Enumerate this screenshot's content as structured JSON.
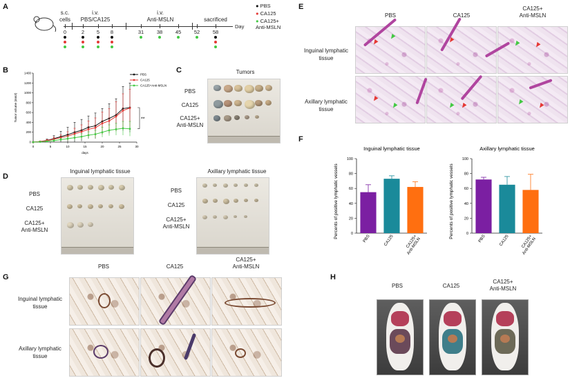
{
  "letters": {
    "A": "A",
    "B": "B",
    "C": "C",
    "D": "D",
    "E": "E",
    "F": "F",
    "G": "G",
    "H": "H"
  },
  "timeline": {
    "stages": [
      {
        "route": "s.c.",
        "label": "cells"
      },
      {
        "route": "i.v.",
        "label": "PBS/CA125"
      },
      {
        "route": "i.v.",
        "label": "Anti-MSLN"
      },
      {
        "route": "",
        "label": "sacrificed"
      }
    ],
    "days": [
      "0",
      "2",
      "5",
      "8",
      "31",
      "38",
      "45",
      "52",
      "58"
    ],
    "axis_label": "Day",
    "legend": [
      {
        "label": "PBS",
        "color": "#111111"
      },
      {
        "label": "CA125",
        "color": "#e53935"
      },
      {
        "label": "CA125+\nAnti-MSLN",
        "color": "#43c943"
      }
    ]
  },
  "panel_c": {
    "title": "Tumors",
    "rows": [
      "PBS",
      "CA125",
      "CA125+\nAnti-MSLN"
    ]
  },
  "panel_d": {
    "titles": [
      "Inguinal lymphatic tissue",
      "Axillary lymphatic tissue"
    ],
    "rows": [
      "PBS",
      "CA125",
      "CA125+\nAnti-MSLN"
    ]
  },
  "panel_e": {
    "cols": [
      "PBS",
      "CA125",
      "CA125+\nAnti-MSLN"
    ],
    "rows": [
      "Inguinal lymphatic\ntissue",
      "Axillary lymphatic\ntissue"
    ]
  },
  "panel_g": {
    "cols": [
      "PBS",
      "CA125",
      "CA125+\nAnti-MSLN"
    ],
    "rows": [
      "Inguinal lymphatic\ntissue",
      "Axillary lymphatic\ntissue"
    ]
  },
  "panel_h": {
    "cols": [
      "PBS",
      "CA125",
      "CA125+\nAnti-MSLN"
    ]
  },
  "chart_data": [
    {
      "id": "B",
      "type": "line",
      "xlabel": "days",
      "ylabel": "Tumor volume (mm3)",
      "xlim": [
        0,
        30
      ],
      "ylim": [
        0,
        1400
      ],
      "xticks": [
        0,
        5,
        10,
        15,
        20,
        25,
        30
      ],
      "yticks": [
        0,
        200,
        400,
        600,
        800,
        1000,
        1200,
        1400
      ],
      "x": [
        0,
        2,
        4,
        6,
        8,
        10,
        12,
        14,
        16,
        18,
        20,
        22,
        24,
        26,
        28
      ],
      "series": [
        {
          "name": "PBS",
          "color": "#111111",
          "values": [
            0,
            10,
            35,
            70,
            110,
            150,
            200,
            240,
            300,
            330,
            420,
            480,
            550,
            680,
            700
          ],
          "errors": [
            0,
            10,
            25,
            60,
            110,
            150,
            200,
            220,
            230,
            260,
            260,
            300,
            330,
            450,
            500
          ]
        },
        {
          "name": "CA125",
          "color": "#e53935",
          "values": [
            0,
            10,
            30,
            60,
            90,
            120,
            170,
            210,
            260,
            290,
            380,
            430,
            520,
            640,
            690
          ],
          "errors": [
            0,
            8,
            20,
            40,
            60,
            90,
            110,
            140,
            170,
            200,
            230,
            250,
            300,
            340,
            380
          ]
        },
        {
          "name": "CA125+Anti-MSLN",
          "color": "#43c943",
          "values": [
            0,
            5,
            15,
            30,
            50,
            70,
            90,
            110,
            140,
            160,
            200,
            240,
            260,
            280,
            270
          ],
          "errors": [
            0,
            5,
            10,
            20,
            30,
            40,
            50,
            60,
            70,
            80,
            100,
            110,
            120,
            140,
            150
          ]
        }
      ],
      "annotation": "**"
    },
    {
      "id": "F-inguinal",
      "type": "bar",
      "title": "Inguinal lymphatic tissue",
      "ylabel": "Percents of positive lymphatic vessels",
      "ylim": [
        0,
        100
      ],
      "yticks": [
        0,
        20,
        40,
        60,
        80,
        100
      ],
      "categories": [
        "PBS",
        "CA125",
        "CA125+\nAnti-MSLN"
      ],
      "values": [
        55,
        73,
        62
      ],
      "errors": [
        10,
        4,
        7
      ],
      "colors": [
        "#7b1fa2",
        "#1a8a9a",
        "#ff6f10"
      ]
    },
    {
      "id": "F-axillary",
      "type": "bar",
      "title": "Axillary lymphatic tissue",
      "ylabel": "Percents of positive lymphatic vessels",
      "ylim": [
        0,
        100
      ],
      "yticks": [
        0,
        20,
        40,
        60,
        80,
        100
      ],
      "categories": [
        "PBS",
        "CA125",
        "CA125+\nAnti-MSLN"
      ],
      "values": [
        72,
        65,
        58
      ],
      "errors": [
        3,
        11,
        21
      ],
      "colors": [
        "#7b1fa2",
        "#1a8a9a",
        "#ff6f10"
      ]
    }
  ]
}
